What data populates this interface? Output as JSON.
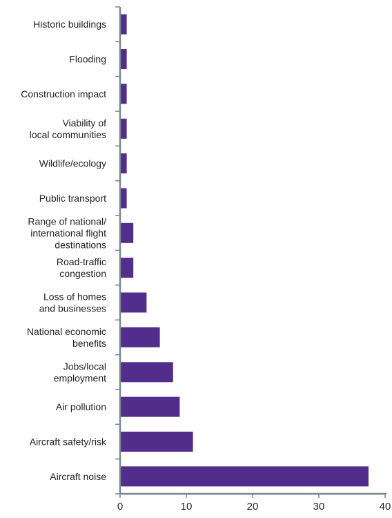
{
  "chart_data": {
    "type": "bar",
    "orientation": "horizontal",
    "categories": [
      [
        "Historic buildings"
      ],
      [
        "Flooding"
      ],
      [
        "Construction impact"
      ],
      [
        "Viability of",
        "local communities"
      ],
      [
        "Wildlife/ecology"
      ],
      [
        "Public transport"
      ],
      [
        "Range of national/",
        "international flight",
        "destinations"
      ],
      [
        "Road-traffic",
        "congestion"
      ],
      [
        "Loss of homes",
        "and businesses"
      ],
      [
        "National economic",
        "benefits"
      ],
      [
        "Jobs/local",
        "employment"
      ],
      [
        "Air pollution"
      ],
      [
        "Aircraft safety/risk"
      ],
      [
        "Aircraft noise"
      ]
    ],
    "values": [
      1,
      1,
      1,
      1,
      1,
      1,
      2,
      2,
      4,
      6,
      8,
      9,
      11,
      37.5
    ],
    "xlim": [
      0,
      40
    ],
    "xticks": [
      "0",
      "10",
      "20",
      "30",
      "40"
    ],
    "title": "",
    "xlabel": "",
    "ylabel": "",
    "grid": false,
    "bar_color": "#522d8c",
    "axis_color": "#7a8590"
  }
}
